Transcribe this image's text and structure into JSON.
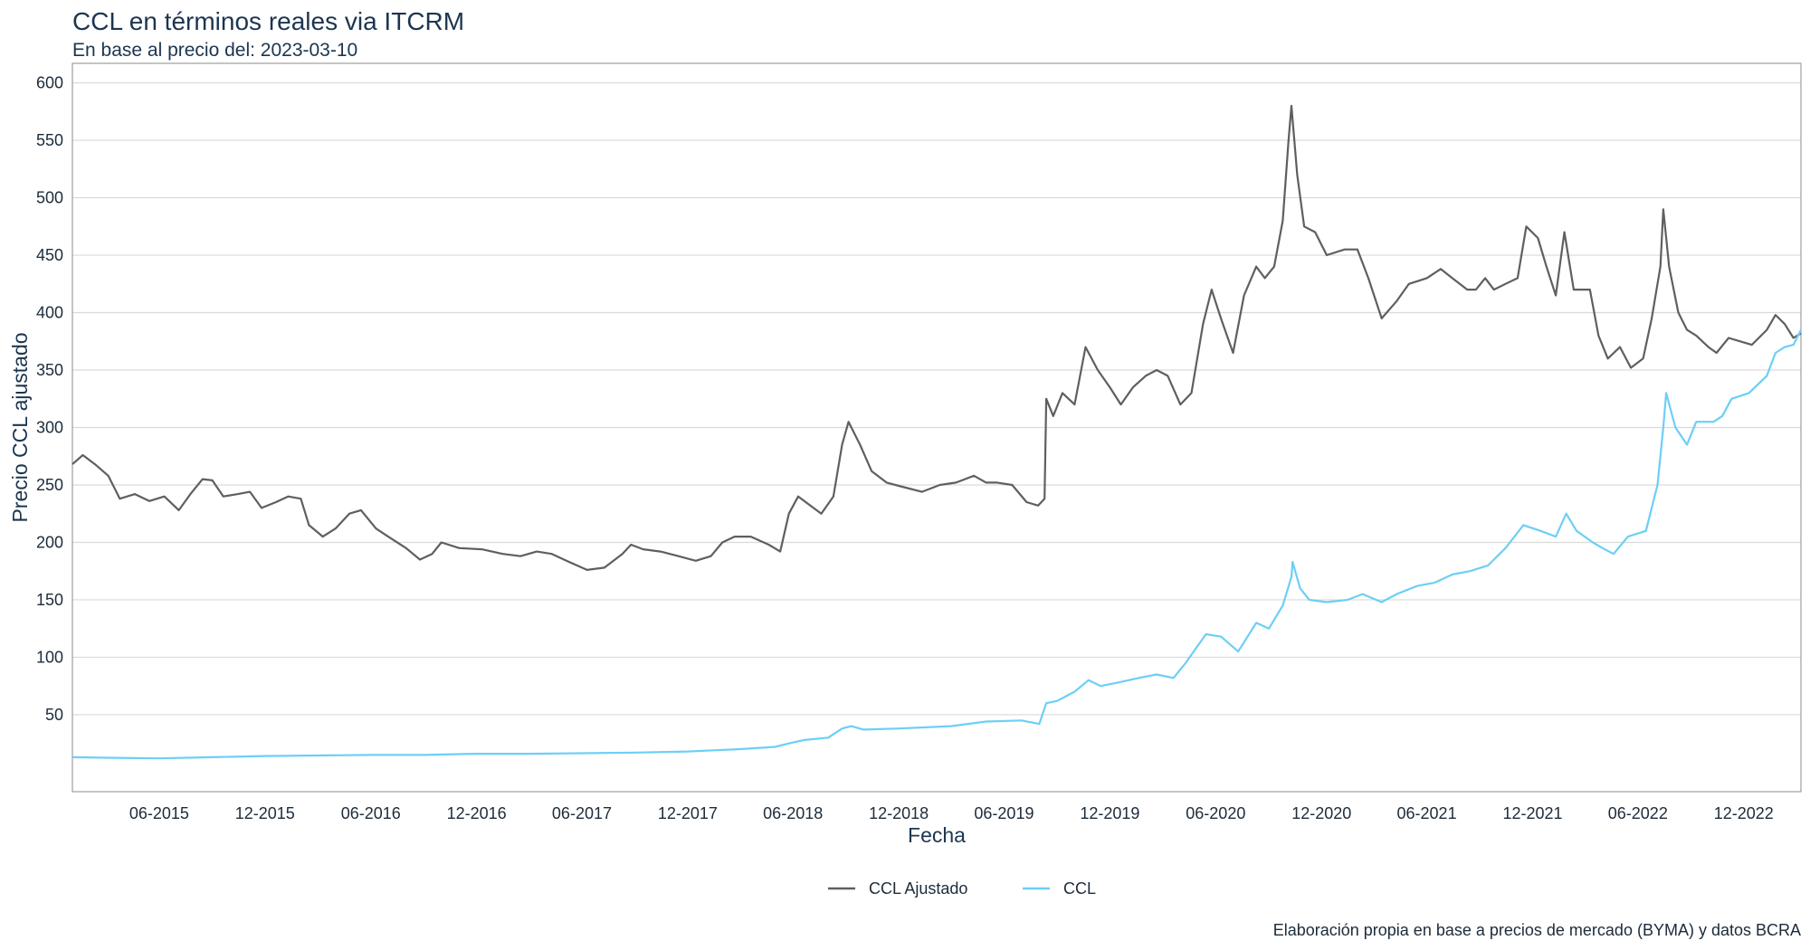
{
  "header": {
    "title": "CCL en términos reales via ITCRM",
    "subtitle": "En base al precio del: 2023-03-10"
  },
  "footer": {
    "caption": "Elaboración propia en base a precios de mercado (BYMA) y datos BCRA"
  },
  "chart_data": {
    "type": "line",
    "title": "CCL en términos reales via ITCRM",
    "subtitle": "En base al precio del: 2023-03-10",
    "xlabel": "Fecha",
    "ylabel": "Precio CCL ajustado",
    "xlim": [
      "2015-01-02",
      "2023-03-10"
    ],
    "ylim": [
      -17,
      617
    ],
    "yticks": [
      50,
      100,
      150,
      200,
      250,
      300,
      350,
      400,
      450,
      500,
      550,
      600
    ],
    "xticks": [
      {
        "date": "2015-06-01",
        "label": "06-2015"
      },
      {
        "date": "2015-12-01",
        "label": "12-2015"
      },
      {
        "date": "2016-06-01",
        "label": "06-2016"
      },
      {
        "date": "2016-12-01",
        "label": "12-2016"
      },
      {
        "date": "2017-06-01",
        "label": "06-2017"
      },
      {
        "date": "2017-12-01",
        "label": "12-2017"
      },
      {
        "date": "2018-06-01",
        "label": "06-2018"
      },
      {
        "date": "2018-12-01",
        "label": "12-2018"
      },
      {
        "date": "2019-06-01",
        "label": "06-2019"
      },
      {
        "date": "2019-12-01",
        "label": "12-2019"
      },
      {
        "date": "2020-06-01",
        "label": "06-2020"
      },
      {
        "date": "2020-12-01",
        "label": "12-2020"
      },
      {
        "date": "2021-06-01",
        "label": "06-2021"
      },
      {
        "date": "2021-12-01",
        "label": "12-2021"
      },
      {
        "date": "2022-06-01",
        "label": "06-2022"
      },
      {
        "date": "2022-12-01",
        "label": "12-2022"
      }
    ],
    "grid": true,
    "legend_position": "bottom",
    "series": [
      {
        "name": "CCL Ajustado",
        "color": "#5f5f5f",
        "points": [
          [
            "2015-01-02",
            268
          ],
          [
            "2015-01-20",
            276
          ],
          [
            "2015-02-10",
            268
          ],
          [
            "2015-03-05",
            258
          ],
          [
            "2015-03-25",
            238
          ],
          [
            "2015-04-20",
            242
          ],
          [
            "2015-05-15",
            236
          ],
          [
            "2015-06-10",
            240
          ],
          [
            "2015-07-05",
            228
          ],
          [
            "2015-07-25",
            242
          ],
          [
            "2015-08-15",
            255
          ],
          [
            "2015-09-01",
            254
          ],
          [
            "2015-09-20",
            240
          ],
          [
            "2015-10-15",
            242
          ],
          [
            "2015-11-05",
            244
          ],
          [
            "2015-11-25",
            230
          ],
          [
            "2015-12-20",
            235
          ],
          [
            "2016-01-10",
            240
          ],
          [
            "2016-02-01",
            238
          ],
          [
            "2016-02-15",
            215
          ],
          [
            "2016-03-10",
            205
          ],
          [
            "2016-04-01",
            212
          ],
          [
            "2016-04-25",
            225
          ],
          [
            "2016-05-15",
            228
          ],
          [
            "2016-06-10",
            212
          ],
          [
            "2016-07-01",
            205
          ],
          [
            "2016-08-01",
            195
          ],
          [
            "2016-08-25",
            185
          ],
          [
            "2016-09-15",
            190
          ],
          [
            "2016-10-01",
            200
          ],
          [
            "2016-11-01",
            195
          ],
          [
            "2016-12-10",
            194
          ],
          [
            "2017-01-15",
            190
          ],
          [
            "2017-02-15",
            188
          ],
          [
            "2017-03-15",
            192
          ],
          [
            "2017-04-10",
            190
          ],
          [
            "2017-05-10",
            183
          ],
          [
            "2017-06-10",
            176
          ],
          [
            "2017-07-10",
            178
          ],
          [
            "2017-08-10",
            190
          ],
          [
            "2017-08-25",
            198
          ],
          [
            "2017-09-15",
            194
          ],
          [
            "2017-10-15",
            192
          ],
          [
            "2017-11-15",
            188
          ],
          [
            "2017-12-15",
            184
          ],
          [
            "2018-01-10",
            188
          ],
          [
            "2018-01-30",
            200
          ],
          [
            "2018-02-20",
            205
          ],
          [
            "2018-03-20",
            205
          ],
          [
            "2018-04-20",
            198
          ],
          [
            "2018-05-10",
            192
          ],
          [
            "2018-05-25",
            225
          ],
          [
            "2018-06-10",
            240
          ],
          [
            "2018-07-01",
            232
          ],
          [
            "2018-07-20",
            225
          ],
          [
            "2018-08-10",
            240
          ],
          [
            "2018-08-25",
            285
          ],
          [
            "2018-09-05",
            305
          ],
          [
            "2018-09-25",
            285
          ],
          [
            "2018-10-15",
            262
          ],
          [
            "2018-11-10",
            252
          ],
          [
            "2018-12-10",
            248
          ],
          [
            "2019-01-10",
            244
          ],
          [
            "2019-02-10",
            250
          ],
          [
            "2019-03-10",
            252
          ],
          [
            "2019-04-10",
            258
          ],
          [
            "2019-05-01",
            252
          ],
          [
            "2019-05-20",
            252
          ],
          [
            "2019-06-15",
            250
          ],
          [
            "2019-07-10",
            235
          ],
          [
            "2019-07-30",
            232
          ],
          [
            "2019-08-10",
            238
          ],
          [
            "2019-08-13",
            325
          ],
          [
            "2019-08-25",
            310
          ],
          [
            "2019-09-10",
            330
          ],
          [
            "2019-10-01",
            320
          ],
          [
            "2019-10-20",
            370
          ],
          [
            "2019-11-10",
            350
          ],
          [
            "2019-12-01",
            335
          ],
          [
            "2019-12-20",
            320
          ],
          [
            "2020-01-10",
            335
          ],
          [
            "2020-02-01",
            345
          ],
          [
            "2020-02-20",
            350
          ],
          [
            "2020-03-10",
            345
          ],
          [
            "2020-04-01",
            320
          ],
          [
            "2020-04-20",
            330
          ],
          [
            "2020-05-10",
            390
          ],
          [
            "2020-05-25",
            420
          ],
          [
            "2020-06-10",
            395
          ],
          [
            "2020-07-01",
            365
          ],
          [
            "2020-07-20",
            415
          ],
          [
            "2020-08-10",
            440
          ],
          [
            "2020-08-25",
            430
          ],
          [
            "2020-09-10",
            440
          ],
          [
            "2020-09-25",
            480
          ],
          [
            "2020-10-05",
            550
          ],
          [
            "2020-10-10",
            580
          ],
          [
            "2020-10-20",
            520
          ],
          [
            "2020-11-01",
            475
          ],
          [
            "2020-11-20",
            470
          ],
          [
            "2020-12-10",
            450
          ],
          [
            "2021-01-10",
            455
          ],
          [
            "2021-02-01",
            455
          ],
          [
            "2021-02-20",
            430
          ],
          [
            "2021-03-15",
            395
          ],
          [
            "2021-04-10",
            410
          ],
          [
            "2021-05-01",
            425
          ],
          [
            "2021-06-01",
            430
          ],
          [
            "2021-06-25",
            438
          ],
          [
            "2021-07-15",
            430
          ],
          [
            "2021-08-10",
            420
          ],
          [
            "2021-08-25",
            420
          ],
          [
            "2021-09-10",
            430
          ],
          [
            "2021-09-25",
            420
          ],
          [
            "2021-10-15",
            425
          ],
          [
            "2021-11-05",
            430
          ],
          [
            "2021-11-20",
            475
          ],
          [
            "2021-12-10",
            465
          ],
          [
            "2021-12-25",
            440
          ],
          [
            "2022-01-10",
            415
          ],
          [
            "2022-01-25",
            470
          ],
          [
            "2022-02-10",
            420
          ],
          [
            "2022-03-10",
            420
          ],
          [
            "2022-03-25",
            380
          ],
          [
            "2022-04-10",
            360
          ],
          [
            "2022-05-01",
            370
          ],
          [
            "2022-05-20",
            352
          ],
          [
            "2022-06-10",
            360
          ],
          [
            "2022-06-25",
            395
          ],
          [
            "2022-07-10",
            440
          ],
          [
            "2022-07-15",
            490
          ],
          [
            "2022-07-25",
            440
          ],
          [
            "2022-08-10",
            400
          ],
          [
            "2022-08-25",
            385
          ],
          [
            "2022-09-10",
            380
          ],
          [
            "2022-10-01",
            370
          ],
          [
            "2022-10-15",
            365
          ],
          [
            "2022-11-05",
            378
          ],
          [
            "2022-11-25",
            375
          ],
          [
            "2022-12-15",
            372
          ],
          [
            "2023-01-10",
            385
          ],
          [
            "2023-01-25",
            398
          ],
          [
            "2023-02-10",
            390
          ],
          [
            "2023-02-25",
            378
          ],
          [
            "2023-03-10",
            382
          ]
        ]
      },
      {
        "name": "CCL",
        "color": "#6ccff6",
        "points": [
          [
            "2015-01-02",
            13
          ],
          [
            "2015-03-01",
            12.5
          ],
          [
            "2015-06-01",
            12
          ],
          [
            "2015-09-01",
            13
          ],
          [
            "2015-12-01",
            14
          ],
          [
            "2016-03-01",
            14.5
          ],
          [
            "2016-06-01",
            15
          ],
          [
            "2016-09-01",
            15
          ],
          [
            "2016-12-01",
            16
          ],
          [
            "2017-03-01",
            16
          ],
          [
            "2017-06-01",
            16.5
          ],
          [
            "2017-09-01",
            17
          ],
          [
            "2017-12-01",
            18
          ],
          [
            "2018-01-15",
            19
          ],
          [
            "2018-03-01",
            20
          ],
          [
            "2018-05-01",
            22
          ],
          [
            "2018-05-25",
            25
          ],
          [
            "2018-06-20",
            28
          ],
          [
            "2018-08-01",
            30
          ],
          [
            "2018-08-25",
            38
          ],
          [
            "2018-09-10",
            40
          ],
          [
            "2018-10-01",
            37
          ],
          [
            "2018-12-01",
            38
          ],
          [
            "2019-03-01",
            40
          ],
          [
            "2019-05-01",
            44
          ],
          [
            "2019-07-01",
            45
          ],
          [
            "2019-08-01",
            42
          ],
          [
            "2019-08-13",
            60
          ],
          [
            "2019-09-01",
            62
          ],
          [
            "2019-10-01",
            70
          ],
          [
            "2019-10-25",
            80
          ],
          [
            "2019-11-15",
            75
          ],
          [
            "2019-12-15",
            78
          ],
          [
            "2020-01-20",
            82
          ],
          [
            "2020-02-20",
            85
          ],
          [
            "2020-03-20",
            82
          ],
          [
            "2020-04-10",
            95
          ],
          [
            "2020-05-15",
            120
          ],
          [
            "2020-06-10",
            118
          ],
          [
            "2020-07-10",
            105
          ],
          [
            "2020-08-10",
            130
          ],
          [
            "2020-09-01",
            125
          ],
          [
            "2020-09-25",
            145
          ],
          [
            "2020-10-10",
            170
          ],
          [
            "2020-10-12",
            183
          ],
          [
            "2020-10-25",
            160
          ],
          [
            "2020-11-10",
            150
          ],
          [
            "2020-12-10",
            148
          ],
          [
            "2021-01-15",
            150
          ],
          [
            "2021-02-10",
            155
          ],
          [
            "2021-03-15",
            148
          ],
          [
            "2021-04-10",
            155
          ],
          [
            "2021-05-15",
            162
          ],
          [
            "2021-06-15",
            165
          ],
          [
            "2021-07-15",
            172
          ],
          [
            "2021-08-15",
            175
          ],
          [
            "2021-09-15",
            180
          ],
          [
            "2021-10-15",
            195
          ],
          [
            "2021-11-15",
            215
          ],
          [
            "2021-12-15",
            210
          ],
          [
            "2022-01-10",
            205
          ],
          [
            "2022-01-28",
            225
          ],
          [
            "2022-02-15",
            210
          ],
          [
            "2022-03-15",
            200
          ],
          [
            "2022-04-01",
            195
          ],
          [
            "2022-04-20",
            190
          ],
          [
            "2022-05-15",
            205
          ],
          [
            "2022-06-15",
            210
          ],
          [
            "2022-07-05",
            250
          ],
          [
            "2022-07-15",
            300
          ],
          [
            "2022-07-20",
            330
          ],
          [
            "2022-08-05",
            300
          ],
          [
            "2022-08-25",
            285
          ],
          [
            "2022-09-10",
            305
          ],
          [
            "2022-10-10",
            305
          ],
          [
            "2022-10-25",
            310
          ],
          [
            "2022-11-10",
            325
          ],
          [
            "2022-12-10",
            330
          ],
          [
            "2023-01-10",
            345
          ],
          [
            "2023-01-25",
            365
          ],
          [
            "2023-02-10",
            370
          ],
          [
            "2023-02-25",
            372
          ],
          [
            "2023-03-10",
            385
          ]
        ]
      }
    ]
  }
}
